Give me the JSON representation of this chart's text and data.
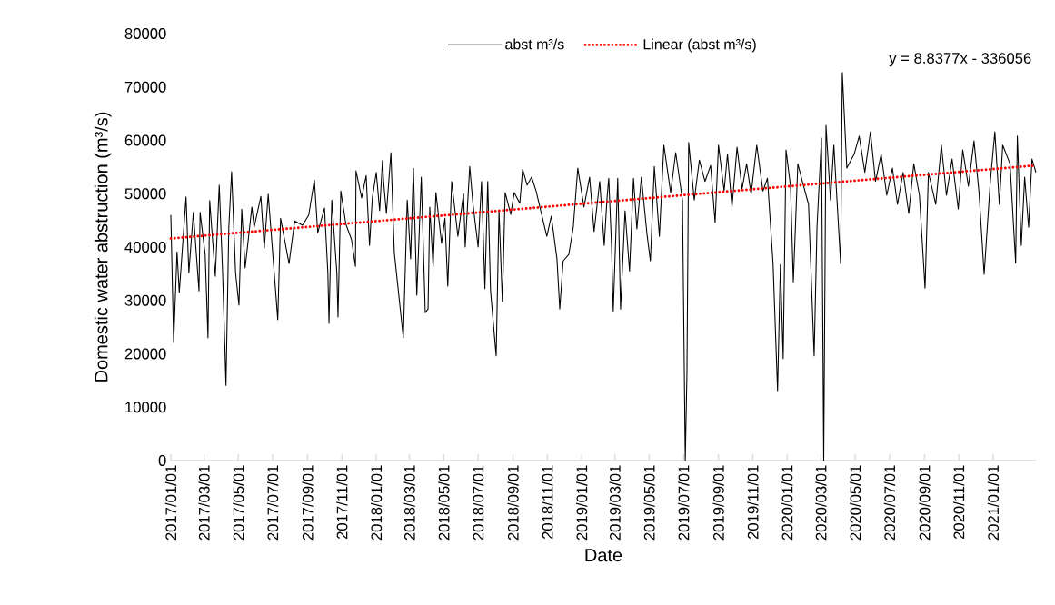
{
  "chart_data": {
    "type": "line",
    "xlabel": "Date",
    "ylabel": "Domestic water abstruction (m³/s)",
    "xlim": [
      "2017-01-01",
      "2021-03-18"
    ],
    "ylim": [
      0,
      80000
    ],
    "yticks": [
      0,
      10000,
      20000,
      30000,
      40000,
      50000,
      60000,
      70000,
      80000
    ],
    "xticks": [
      {
        "value": "2017-01-01",
        "label": "2017/01/01"
      },
      {
        "value": "2017-03-01",
        "label": "2017/03/01"
      },
      {
        "value": "2017-05-01",
        "label": "2017/05/01"
      },
      {
        "value": "2017-07-01",
        "label": "2017/07/01"
      },
      {
        "value": "2017-09-01",
        "label": "2017/09/01"
      },
      {
        "value": "2017-11-01",
        "label": "2017/11/01"
      },
      {
        "value": "2018-01-01",
        "label": "2018/01/01"
      },
      {
        "value": "2018-03-01",
        "label": "2018/03/01"
      },
      {
        "value": "2018-05-01",
        "label": "2018/05/01"
      },
      {
        "value": "2018-07-01",
        "label": "2018/07/01"
      },
      {
        "value": "2018-09-01",
        "label": "2018/09/01"
      },
      {
        "value": "2018-11-01",
        "label": "2018/11/01"
      },
      {
        "value": "2019-01-01",
        "label": "2019/01/01"
      },
      {
        "value": "2019-03-01",
        "label": "2019/03/01"
      },
      {
        "value": "2019-05-01",
        "label": "2019/05/01"
      },
      {
        "value": "2019-07-01",
        "label": "2019/07/01"
      },
      {
        "value": "2019-09-01",
        "label": "2019/09/01"
      },
      {
        "value": "2019-11-01",
        "label": "2019/11/01"
      },
      {
        "value": "2020-01-01",
        "label": "2020/01/01"
      },
      {
        "value": "2020-03-01",
        "label": "2020/03/01"
      },
      {
        "value": "2020-05-01",
        "label": "2020/05/01"
      },
      {
        "value": "2020-07-01",
        "label": "2020/07/01"
      },
      {
        "value": "2020-09-01",
        "label": "2020/09/01"
      },
      {
        "value": "2020-11-01",
        "label": "2020/11/01"
      },
      {
        "value": "2021-01-01",
        "label": "2021/01/01"
      }
    ],
    "legend": "top",
    "marker": "none",
    "annotations": [
      "y = 8.8377x - 336056"
    ],
    "series": [
      {
        "name": "abst  m³/s",
        "color": "#000000",
        "line_style": "solid",
        "x": [
          "2017-01-01",
          "2017-01-06",
          "2017-01-12",
          "2017-01-16",
          "2017-01-28",
          "2017-02-02",
          "2017-02-10",
          "2017-02-20",
          "2017-02-22",
          "2017-03-03",
          "2017-03-08",
          "2017-03-11",
          "2017-03-21",
          "2017-03-28",
          "2017-04-03",
          "2017-04-09",
          "2017-04-14",
          "2017-04-19",
          "2017-04-26",
          "2017-05-02",
          "2017-05-07",
          "2017-05-13",
          "2017-05-25",
          "2017-05-29",
          "2017-06-10",
          "2017-06-16",
          "2017-06-23",
          "2017-07-10",
          "2017-07-15",
          "2017-07-30",
          "2017-08-09",
          "2017-08-23",
          "2017-09-03",
          "2017-09-13",
          "2017-09-19",
          "2017-10-01",
          "2017-10-07",
          "2017-10-09",
          "2017-10-14",
          "2017-10-23",
          "2017-10-25",
          "2017-10-30",
          "2017-11-08",
          "2017-11-18",
          "2017-11-25",
          "2017-11-26",
          "2017-12-06",
          "2017-12-14",
          "2017-12-20",
          "2017-12-25",
          "2018-01-01",
          "2018-01-07",
          "2018-01-12",
          "2018-01-14",
          "2018-01-19",
          "2018-01-27",
          "2018-02-02",
          "2018-02-18",
          "2018-02-25",
          "2018-03-03",
          "2018-03-08",
          "2018-03-14",
          "2018-03-22",
          "2018-03-29",
          "2018-04-03",
          "2018-04-06",
          "2018-04-12",
          "2018-04-17",
          "2018-04-27",
          "2018-05-03",
          "2018-05-08",
          "2018-05-15",
          "2018-05-26",
          "2018-06-05",
          "2018-06-08",
          "2018-06-16",
          "2018-06-22",
          "2018-07-01",
          "2018-07-07",
          "2018-07-13",
          "2018-07-18",
          "2018-07-23",
          "2018-08-02",
          "2018-08-07",
          "2018-08-13",
          "2018-08-18",
          "2018-08-28",
          "2018-09-03",
          "2018-09-13",
          "2018-09-18",
          "2018-09-26",
          "2018-10-04",
          "2018-10-12",
          "2018-10-31",
          "2018-11-08",
          "2018-11-18",
          "2018-11-23",
          "2018-11-29",
          "2018-12-09",
          "2018-12-17",
          "2018-12-25",
          "2019-01-05",
          "2019-01-15",
          "2019-01-23",
          "2019-02-02",
          "2019-02-10",
          "2019-02-15",
          "2019-02-18",
          "2019-02-23",
          "2019-02-26",
          "2019-03-06",
          "2019-03-11",
          "2019-03-19",
          "2019-03-27",
          "2019-04-03",
          "2019-04-09",
          "2019-04-17",
          "2019-04-27",
          "2019-05-03",
          "2019-05-10",
          "2019-05-19",
          "2019-05-27",
          "2019-06-08",
          "2019-06-17",
          "2019-06-29",
          "2019-07-04",
          "2019-07-07",
          "2019-07-10",
          "2019-07-20",
          "2019-07-29",
          "2019-08-08",
          "2019-08-18",
          "2019-08-26",
          "2019-09-01",
          "2019-09-11",
          "2019-09-17",
          "2019-09-25",
          "2019-10-04",
          "2019-10-13",
          "2019-10-21",
          "2019-10-29",
          "2019-11-08",
          "2019-11-19",
          "2019-11-27",
          "2019-12-07",
          "2019-12-15",
          "2019-12-20",
          "2019-12-25",
          "2019-12-30",
          "2020-01-07",
          "2020-01-12",
          "2020-01-20",
          "2020-01-28",
          "2020-02-08",
          "2020-02-18",
          "2020-02-23",
          "2020-03-02",
          "2020-03-06",
          "2020-03-10",
          "2020-03-18",
          "2020-03-24",
          "2020-04-05",
          "2020-04-08",
          "2020-04-16",
          "2020-04-29",
          "2020-05-08",
          "2020-05-18",
          "2020-05-28",
          "2020-06-06",
          "2020-06-16",
          "2020-06-26",
          "2020-07-06",
          "2020-07-15",
          "2020-07-25",
          "2020-08-04",
          "2020-08-13",
          "2020-08-23",
          "2020-09-02",
          "2020-09-08",
          "2020-09-21",
          "2020-10-01",
          "2020-10-10",
          "2020-10-20",
          "2020-10-31",
          "2020-11-08",
          "2020-11-18",
          "2020-11-28",
          "2020-12-07",
          "2020-12-16",
          "2020-12-27",
          "2021-01-04",
          "2021-01-12",
          "2021-01-18",
          "2021-01-31",
          "2021-02-10",
          "2021-02-13",
          "2021-02-20",
          "2021-02-26",
          "2021-03-05",
          "2021-03-11",
          "2021-03-18"
        ],
        "values": [
          46000,
          22100,
          39100,
          31500,
          49400,
          35200,
          46500,
          31800,
          46500,
          38600,
          23000,
          48700,
          34500,
          51600,
          35200,
          14100,
          43700,
          54100,
          35200,
          29100,
          47100,
          36100,
          47500,
          43700,
          49500,
          39800,
          49900,
          26400,
          45400,
          36900,
          44900,
          44100,
          46000,
          52600,
          42700,
          47300,
          35200,
          25700,
          48800,
          35100,
          26900,
          50500,
          44300,
          41400,
          36400,
          54300,
          49200,
          53400,
          40300,
          49200,
          54000,
          46800,
          56200,
          52300,
          46300,
          57700,
          39000,
          23000,
          48800,
          37800,
          54800,
          31000,
          53100,
          27700,
          28400,
          47500,
          36300,
          50200,
          40700,
          45400,
          32700,
          52300,
          42000,
          50000,
          40000,
          55100,
          47800,
          40000,
          52300,
          32200,
          52300,
          31800,
          19600,
          46800,
          29800,
          50200,
          46100,
          50200,
          48200,
          54600,
          51600,
          53100,
          50500,
          42000,
          45800,
          37800,
          28400,
          37400,
          38600,
          43700,
          54800,
          47500,
          53100,
          42900,
          52300,
          40300,
          49200,
          52900,
          40300,
          27900,
          52900,
          28400,
          46800,
          35500,
          52900,
          43400,
          53100,
          42400,
          37400,
          55100,
          42000,
          59100,
          50200,
          57700,
          48800,
          0,
          16500,
          59600,
          48800,
          56300,
          52300,
          55300,
          44600,
          59100,
          50500,
          57400,
          47500,
          58700,
          50900,
          55600,
          49900,
          59100,
          50500,
          52900,
          36900,
          13100,
          36700,
          19100,
          58200,
          51400,
          33500,
          55600,
          52300,
          48000,
          19600,
          43700,
          60400,
          0,
          62800,
          48800,
          59100,
          36900,
          72700,
          54800,
          57400,
          60800,
          54000,
          61600,
          52300,
          57400,
          49700,
          54800,
          48000,
          54000,
          46300,
          55600,
          49700,
          32300,
          54000,
          48000,
          59100,
          49700,
          56500,
          47100,
          58200,
          51400,
          59900,
          50100,
          34900,
          52300,
          61600,
          48000,
          59100,
          55600,
          37000,
          60800,
          40300,
          53100,
          43700,
          56500,
          54000
        ]
      },
      {
        "name": "Linear (abst  m³/s)",
        "color": "#ff0000",
        "line_style": "dotted",
        "x": [
          "2017-01-01",
          "2021-03-18"
        ],
        "values": [
          41600,
          55300
        ]
      }
    ]
  }
}
